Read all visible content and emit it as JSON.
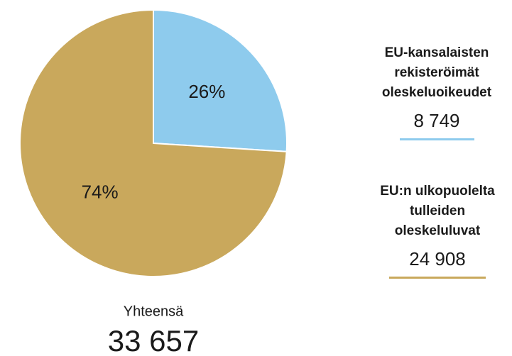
{
  "chart_data": {
    "type": "pie",
    "categories": [
      "EU-kansalaisten rekisteröimät oleskeluoikeudet",
      "EU:n ulkopuolelta tulleiden oleskeluluvat"
    ],
    "values": [
      26,
      74
    ],
    "value_labels": [
      "26%",
      "74%"
    ],
    "colors": [
      "#8ecbed",
      "#c9a85c"
    ],
    "counts": [
      {
        "value": 8749,
        "label": "8 749"
      },
      {
        "value": 24908,
        "label": "24 908"
      }
    ],
    "total_title": "Yhteensä",
    "total": {
      "value": 33657,
      "label": "33 657"
    }
  }
}
